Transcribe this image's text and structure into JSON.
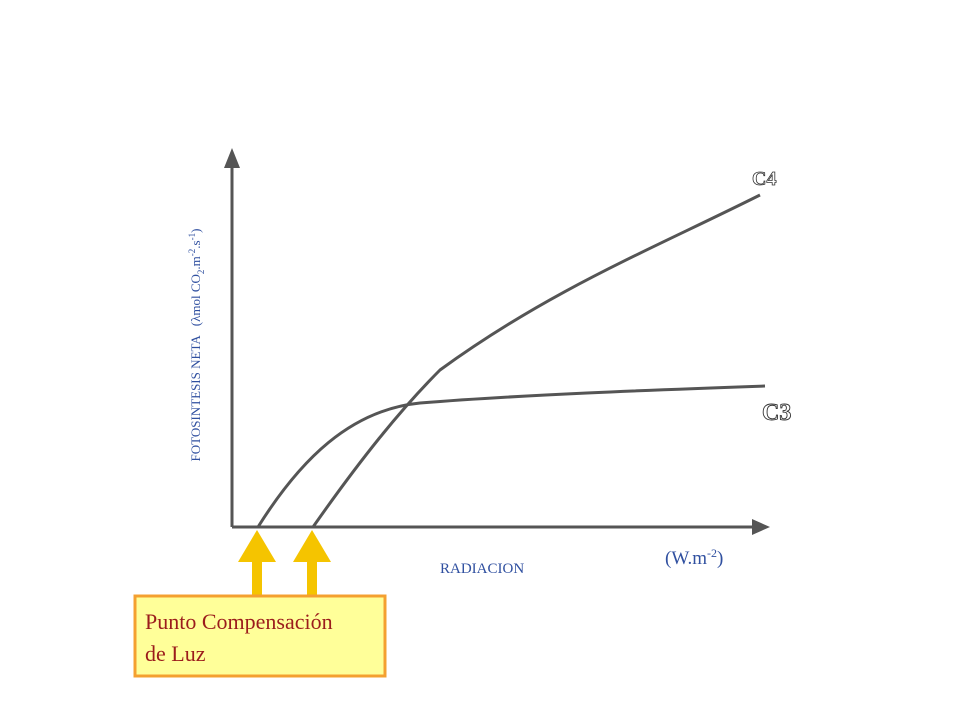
{
  "labels": {
    "c4": "C4",
    "c3": "C3"
  },
  "y_axis": {
    "title_parts": [
      "FOTOSINTESIS NETA",
      "(λmol CO",
      "2",
      ".m",
      "-2",
      ".s",
      "-1",
      ")"
    ]
  },
  "x_axis": {
    "title": "RADIACION",
    "unit_parts": [
      "(W.m",
      "-2",
      ")"
    ]
  },
  "callout": {
    "lines": [
      "Punto Compensación",
      "de Luz"
    ]
  }
}
